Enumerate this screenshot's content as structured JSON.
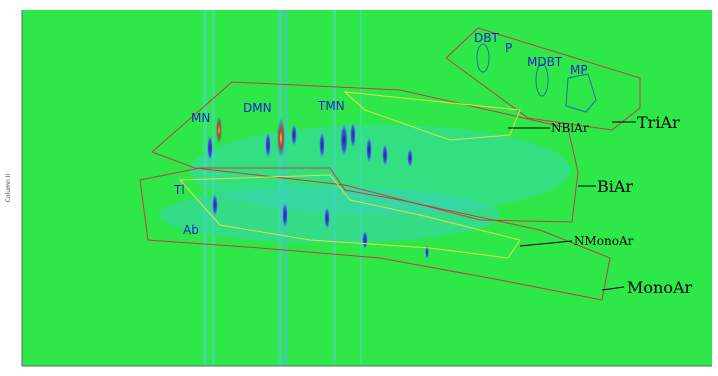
{
  "axis_label": "Column II",
  "compounds": {
    "DBT": "DBT",
    "P": "P",
    "MDBT": "MDBT",
    "MP": "MP",
    "MN": "MN",
    "DMN": "DMN",
    "TMN": "TMN",
    "Tl": "Tl",
    "Ab": "Ab"
  },
  "regions": {
    "TriAr": "TriAr",
    "BiAr": "BiAr",
    "NBiAr": "NBiAr",
    "MonoAr": "MonoAr",
    "NMonoAr": "NMonoAr"
  }
}
